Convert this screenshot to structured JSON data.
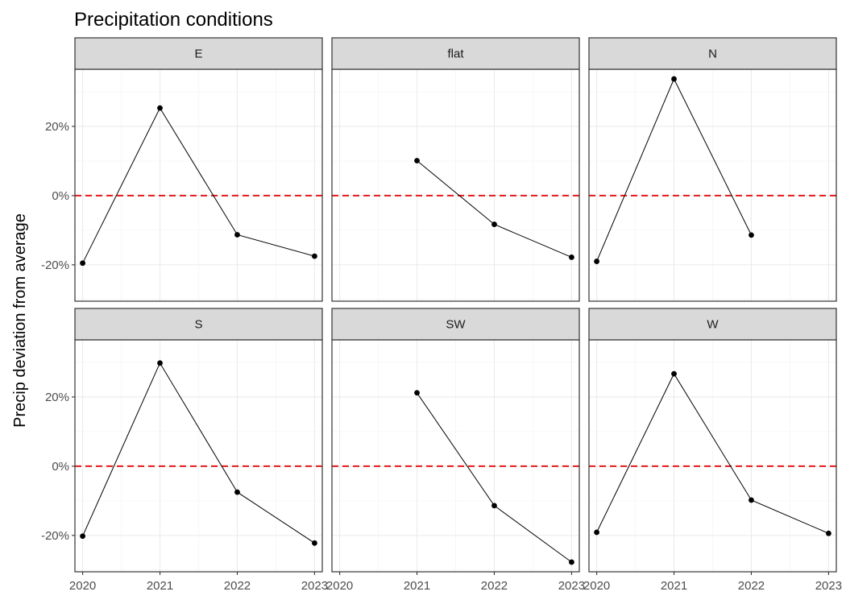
{
  "chart_data": {
    "type": "line",
    "layout": "facet_wrap 2x3",
    "title": "Precipitation conditions",
    "xlabel": "",
    "ylabel": "Precip deviation from average",
    "x_ticks": [
      2020,
      2021,
      2022,
      2023
    ],
    "x_tick_labels": [
      "2020",
      "2021",
      "2022",
      "2023"
    ],
    "y_ticks": [
      -20,
      0,
      20
    ],
    "y_tick_labels": [
      "-20%",
      "0%",
      "20%"
    ],
    "xlim": [
      2019.9,
      2023.1
    ],
    "ylim": [
      -30.5,
      36.5
    ],
    "reference_line": {
      "y": 0,
      "style": "dashed",
      "color": "#e31a1c"
    },
    "point_color": "#000000",
    "panel_strip_fill": "#d9d9d9",
    "panels": [
      {
        "label": "E",
        "x": [
          2020,
          2021,
          2022,
          2023
        ],
        "y": [
          -19.5,
          25.3,
          -11.3,
          -17.5
        ]
      },
      {
        "label": "flat",
        "x": [
          2021,
          2022,
          2023
        ],
        "y": [
          10.1,
          -8.3,
          -17.8
        ]
      },
      {
        "label": "N",
        "x": [
          2020,
          2021,
          2022
        ],
        "y": [
          -19.0,
          33.7,
          -11.4
        ]
      },
      {
        "label": "S",
        "x": [
          2020,
          2021,
          2022,
          2023
        ],
        "y": [
          -20.2,
          29.8,
          -7.5,
          -22.2
        ]
      },
      {
        "label": "SW",
        "x": [
          2021,
          2022,
          2023
        ],
        "y": [
          21.2,
          -11.4,
          -27.7
        ]
      },
      {
        "label": "W",
        "x": [
          2020,
          2021,
          2022,
          2023
        ],
        "y": [
          -19.1,
          26.7,
          -9.8,
          -19.4
        ]
      }
    ]
  }
}
